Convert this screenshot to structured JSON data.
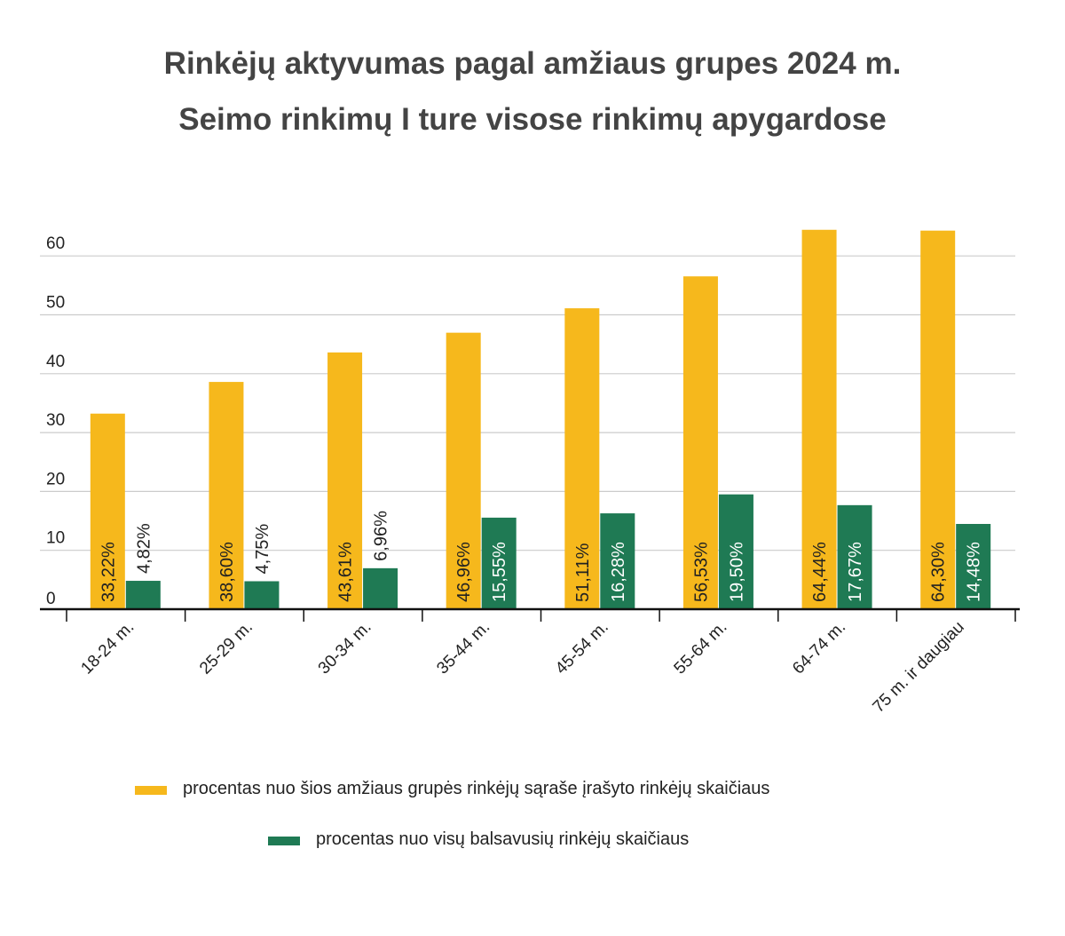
{
  "title": "Rinkėjų aktyvumas pagal amžiaus grupes 2024 m.",
  "subtitle": "Seimo rinkimų I ture visose rinkimų apygardose",
  "colors": {
    "yellow": "#F6B81C",
    "green": "#1F7A54",
    "grid": "#CCCCCC",
    "axis": "#111111",
    "text": "#222222"
  },
  "chart_data": {
    "type": "bar",
    "title": "Rinkėjų aktyvumas pagal amžiaus grupes 2024 m.",
    "subtitle": "Seimo rinkimų I ture visose rinkimų apygardose",
    "categories": [
      "18-24 m.",
      "25-29 m.",
      "30-34 m.",
      "35-44 m.",
      "45-54 m.",
      "55-64 m.",
      "64-74 m.",
      "75 m. ir daugiau"
    ],
    "series": [
      {
        "name": "procentas nuo šios amžiaus grupės rinkėjų sąraše įrašyto rinkėjų skaičiaus",
        "color": "#F6B81C",
        "values": [
          33.22,
          38.6,
          43.61,
          46.96,
          51.11,
          56.53,
          64.44,
          64.3
        ],
        "labels": [
          "33,22%",
          "38,60%",
          "43,61%",
          "46,96%",
          "51,11%",
          "56,53%",
          "64,44%",
          "64,30%"
        ]
      },
      {
        "name": "procentas nuo visų balsavusių rinkėjų skaičiaus",
        "color": "#1F7A54",
        "values": [
          4.82,
          4.75,
          6.96,
          15.55,
          16.28,
          19.5,
          17.67,
          14.48
        ],
        "labels": [
          "4,82%",
          "4,75%",
          "6,96%",
          "15,55%",
          "16,28%",
          "19,50%",
          "17,67%",
          "14,48%"
        ]
      }
    ],
    "yticks": [
      0,
      10,
      20,
      30,
      40,
      50,
      60
    ],
    "ylim": [
      0,
      65
    ],
    "grid": true,
    "legend": "bottom",
    "xlabel": "",
    "ylabel": ""
  }
}
